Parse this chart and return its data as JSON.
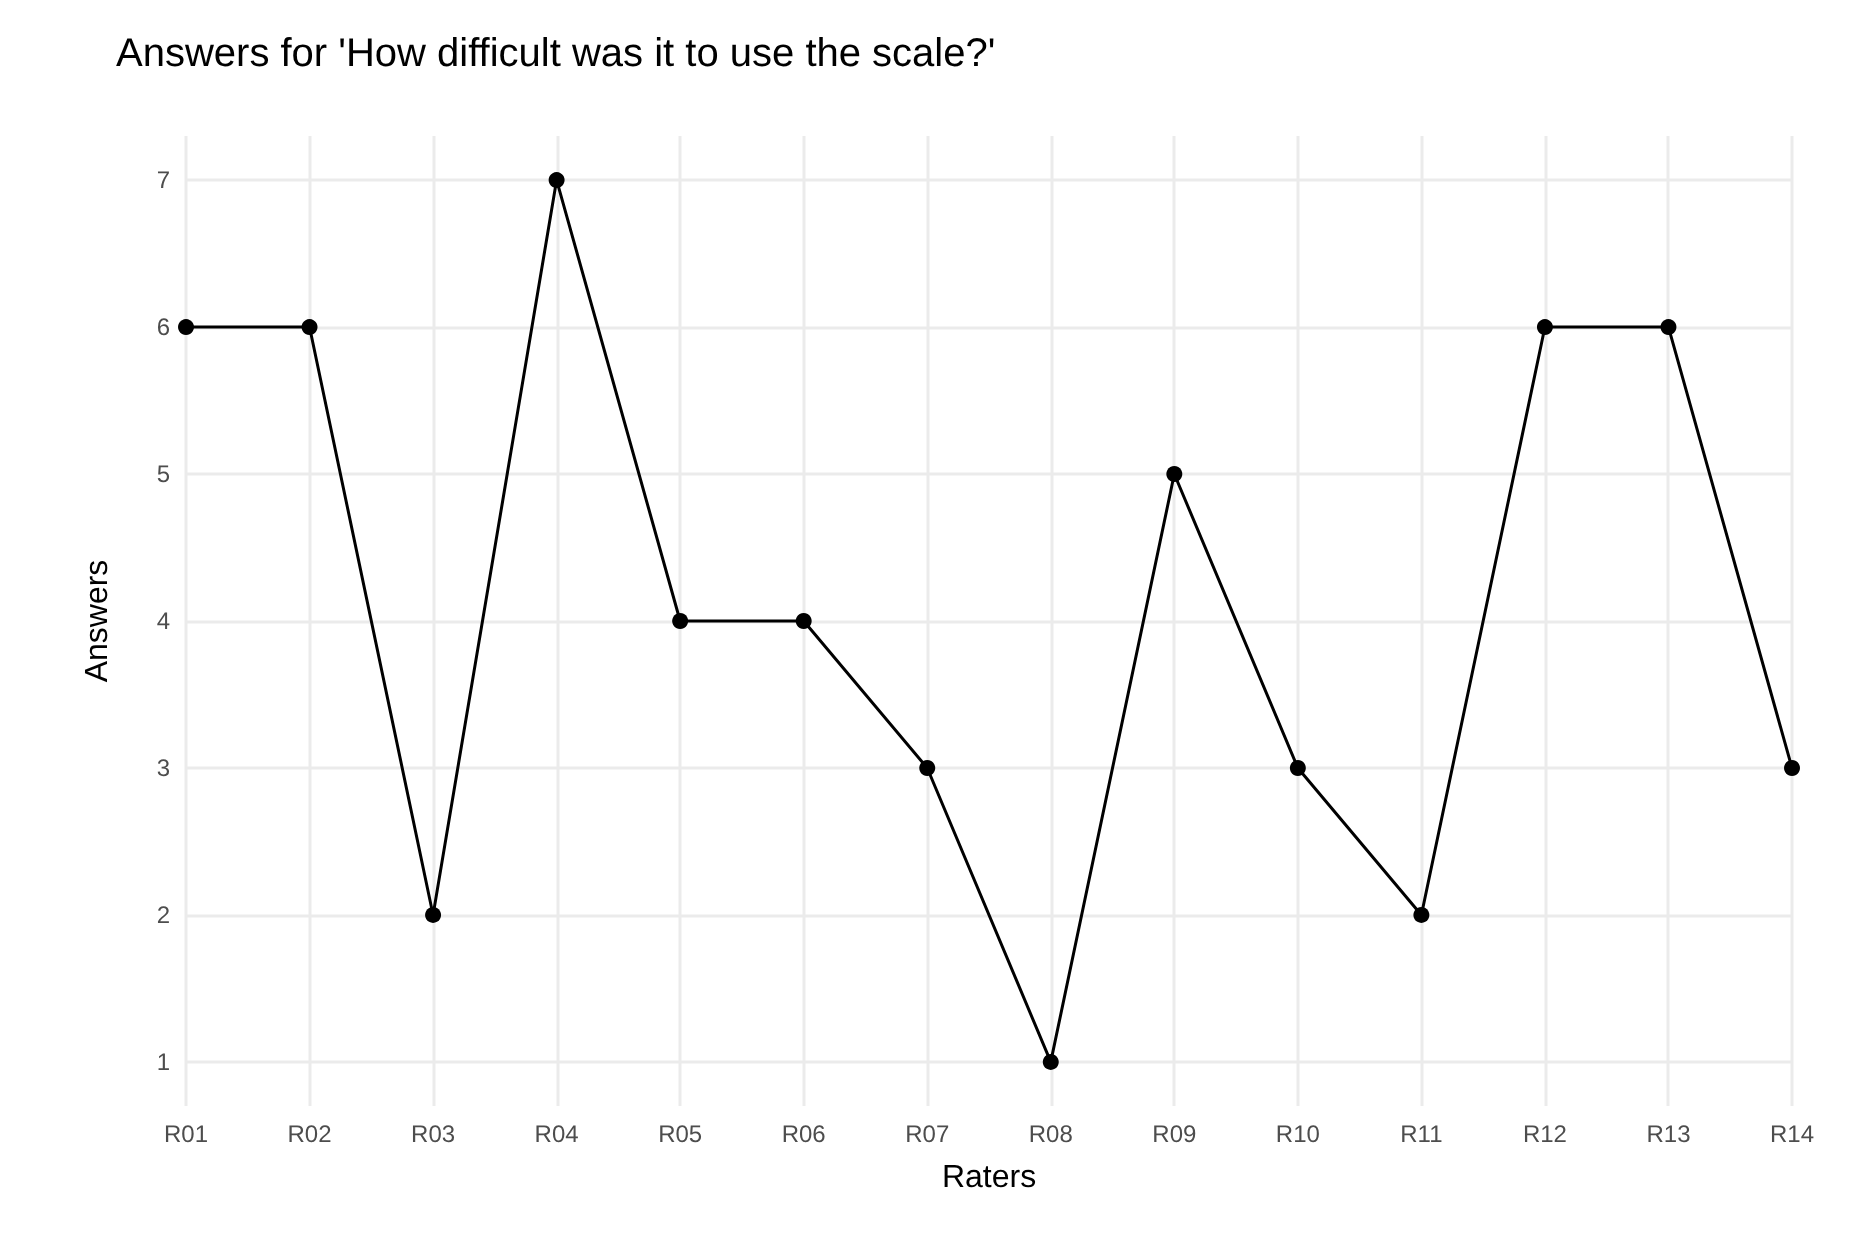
{
  "chart_data": {
    "type": "line",
    "title": "Answers for 'How difficult was it to use the scale?'",
    "xlabel": "Raters",
    "ylabel": "Answers",
    "categories": [
      "R01",
      "R02",
      "R03",
      "R04",
      "R05",
      "R06",
      "R07",
      "R08",
      "R09",
      "R10",
      "R11",
      "R12",
      "R13",
      "R14"
    ],
    "series": [
      {
        "color": "#000000",
        "values": [
          6,
          6,
          2,
          7,
          4,
          4,
          3,
          1,
          5,
          3,
          2,
          6,
          6,
          3
        ]
      }
    ],
    "ylim": [
      0.7,
      7.3
    ],
    "yticks": [
      1,
      2,
      3,
      4,
      5,
      6,
      7
    ],
    "grid": true,
    "marker": "circle",
    "line_style": "solid"
  }
}
